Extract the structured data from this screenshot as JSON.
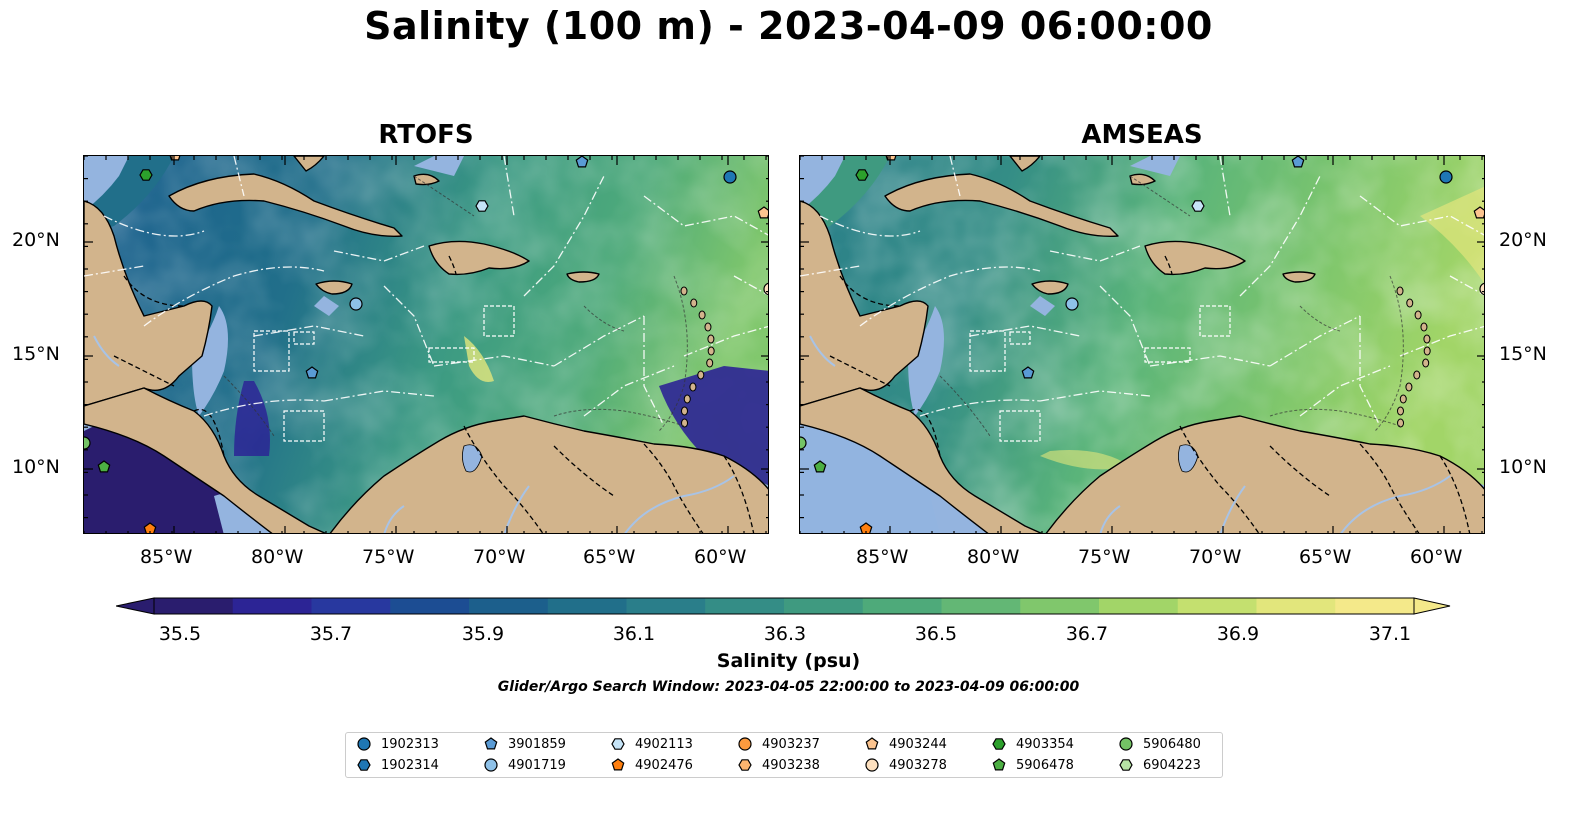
{
  "figure": {
    "title": "Salinity (100 m) - 2023-04-09 06:00:00",
    "window_text": "Glider/Argo Search Window: 2023-04-05 22:00:00 to 2023-04-09 06:00:00"
  },
  "panels": [
    {
      "title": "RTOFS",
      "mode": "rtofs"
    },
    {
      "title": "AMSEAS",
      "mode": "amseas"
    }
  ],
  "axes": {
    "lon_labels": [
      "85°W",
      "80°W",
      "75°W",
      "70°W",
      "65°W",
      "60°W"
    ],
    "lat_labels": [
      "20°N",
      "15°N",
      "10°N"
    ]
  },
  "colorbar": {
    "label": "Salinity (psu)",
    "ticks": [
      "35.5",
      "35.7",
      "35.9",
      "36.1",
      "36.3",
      "36.5",
      "36.7",
      "36.9",
      "37.1"
    ],
    "colors": [
      "#2a1d6e",
      "#2c2495",
      "#28389f",
      "#1c4d93",
      "#1c5f8c",
      "#216f8a",
      "#2a7e8a",
      "#348d86",
      "#3f9a80",
      "#4eaa7a",
      "#63b775",
      "#80c76c",
      "#a2d568",
      "#c4e06f",
      "#e2e67c",
      "#f4e98a"
    ]
  },
  "legend": {
    "items": [
      {
        "label": "1902313",
        "marker": "circle",
        "color": "#1f77b4"
      },
      {
        "label": "1902314",
        "marker": "hexagon",
        "color": "#1f77b4"
      },
      {
        "label": "3901859",
        "marker": "pentagon",
        "color": "#5a9bd5"
      },
      {
        "label": "4901719",
        "marker": "circle",
        "color": "#8ec1e8"
      },
      {
        "label": "4902113",
        "marker": "hexagon",
        "color": "#c6e4f7"
      },
      {
        "label": "4902476",
        "marker": "pentagon",
        "color": "#ff7f0e"
      },
      {
        "label": "4903237",
        "marker": "circle",
        "color": "#fd9a3e"
      },
      {
        "label": "4903238",
        "marker": "hexagon",
        "color": "#fdb56f"
      },
      {
        "label": "4903244",
        "marker": "pentagon",
        "color": "#fcc48f"
      },
      {
        "label": "4903278",
        "marker": "circle",
        "color": "#fde0bf"
      },
      {
        "label": "4903354",
        "marker": "hexagon",
        "color": "#2ca02c"
      },
      {
        "label": "5906478",
        "marker": "pentagon",
        "color": "#4caf43"
      },
      {
        "label": "5906480",
        "marker": "circle",
        "color": "#74c365"
      },
      {
        "label": "6904223",
        "marker": "hexagon",
        "color": "#b6e3a5"
      }
    ]
  }
}
